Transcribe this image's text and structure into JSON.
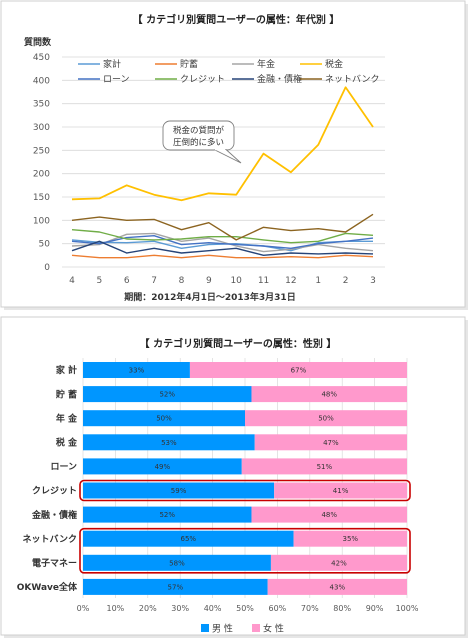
{
  "chart_data": [
    {
      "type": "line",
      "title": "【 カテゴリ別質問ユーザーの属性：年代別 】",
      "ylabel": "質問数",
      "note": "期間：2012年4月1日～2013年3月31日",
      "categories": [
        "4",
        "5",
        "6",
        "7",
        "8",
        "9",
        "10",
        "11",
        "12",
        "1",
        "2",
        "3"
      ],
      "ylim": [
        0,
        450
      ],
      "yticks": [
        0,
        50,
        100,
        150,
        200,
        250,
        300,
        350,
        400,
        450
      ],
      "grid": true,
      "legend_position": "top",
      "series": [
        {
          "name": "家計",
          "color": "#5B9BD5",
          "values": [
            58,
            53,
            52,
            55,
            40,
            48,
            50,
            45,
            35,
            52,
            55,
            55
          ]
        },
        {
          "name": "貯蓄",
          "color": "#ED7D31",
          "values": [
            25,
            20,
            20,
            25,
            20,
            25,
            20,
            20,
            22,
            20,
            25,
            22
          ]
        },
        {
          "name": "年金",
          "color": "#A5A5A5",
          "values": [
            45,
            48,
            70,
            72,
            55,
            62,
            45,
            33,
            38,
            48,
            40,
            35
          ]
        },
        {
          "name": "税金",
          "color": "#FFC000",
          "values": [
            145,
            147,
            175,
            155,
            143,
            158,
            155,
            243,
            203,
            262,
            385,
            300
          ]
        },
        {
          "name": "ローン",
          "color": "#4472C4",
          "values": [
            55,
            50,
            63,
            67,
            48,
            52,
            48,
            45,
            40,
            50,
            55,
            62
          ]
        },
        {
          "name": "クレジット",
          "color": "#70AD47",
          "values": [
            80,
            75,
            60,
            58,
            60,
            65,
            65,
            58,
            52,
            55,
            72,
            68
          ]
        },
        {
          "name": "金融・債権",
          "color": "#264478",
          "values": [
            35,
            55,
            30,
            40,
            30,
            35,
            40,
            25,
            30,
            28,
            30,
            28
          ]
        },
        {
          "name": "ネットバンク",
          "color": "#8C6420",
          "values": [
            100,
            107,
            100,
            102,
            80,
            95,
            58,
            85,
            78,
            82,
            75,
            113
          ]
        }
      ],
      "annotation": {
        "lines": [
          "税金の質問が",
          "圧倒的に多い"
        ]
      }
    },
    {
      "type": "bar",
      "orientation": "horizontal",
      "stacked": "percent",
      "title": "【 カテゴリ別質問ユーザーの属性：性別 】",
      "categories": [
        "家 計",
        "貯 蓄",
        "年 金",
        "税 金",
        "ローン",
        "クレジット",
        "金融・債権",
        "ネットバンク",
        "電子マネー",
        "OKWave全体"
      ],
      "xlim": [
        0,
        100
      ],
      "xticks": [
        0,
        10,
        20,
        30,
        40,
        50,
        60,
        70,
        80,
        90,
        100
      ],
      "unit": "%",
      "grid": true,
      "legend_position": "bottom",
      "series": [
        {
          "name": "男 性",
          "color": "#0096FF",
          "values": [
            33,
            52,
            50,
            53,
            49,
            59,
            52,
            65,
            58,
            57
          ]
        },
        {
          "name": "女 性",
          "color": "#FF99CC",
          "values": [
            67,
            48,
            50,
            47,
            51,
            41,
            48,
            35,
            42,
            43
          ]
        }
      ],
      "highlight_rows": [
        [
          5
        ],
        [
          7,
          8
        ]
      ],
      "highlight_color": "#C80000"
    }
  ]
}
